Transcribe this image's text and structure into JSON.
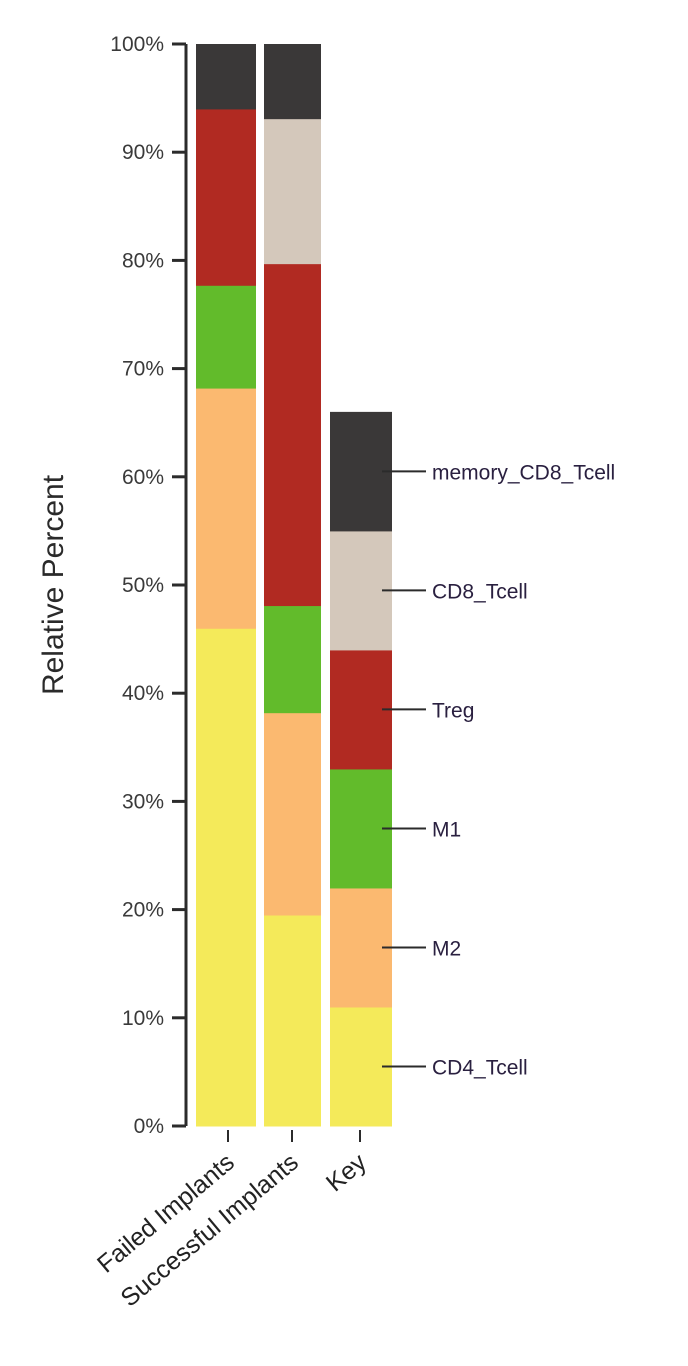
{
  "chart_data": {
    "type": "bar",
    "stacked": true,
    "ylabel": "Relative Percent",
    "ylim": [
      0,
      100
    ],
    "yticks": [
      "0%",
      "10%",
      "20%",
      "30%",
      "40%",
      "50%",
      "60%",
      "70%",
      "80%",
      "90%",
      "100%"
    ],
    "categories": [
      "Failed Implants",
      "Successful Implants"
    ],
    "key_label": "Key",
    "series": [
      {
        "name": "CD4_Tcell",
        "color": "#f4ea5a",
        "values": [
          46,
          19.5
        ]
      },
      {
        "name": "M2",
        "color": "#fbb970",
        "values": [
          22.2,
          18.7
        ]
      },
      {
        "name": "M1",
        "color": "#62bb2b",
        "values": [
          9.5,
          9.9
        ]
      },
      {
        "name": "Treg",
        "color": "#b12a22",
        "values": [
          16.3,
          31.6
        ]
      },
      {
        "name": "CD8_Tcell",
        "color": "#d4c8bb",
        "values": [
          0,
          13.4
        ]
      },
      {
        "name": "memory_CD8_Tcell",
        "color": "#3a3838",
        "values": [
          6,
          6.9
        ]
      }
    ],
    "legend_position": "right"
  }
}
